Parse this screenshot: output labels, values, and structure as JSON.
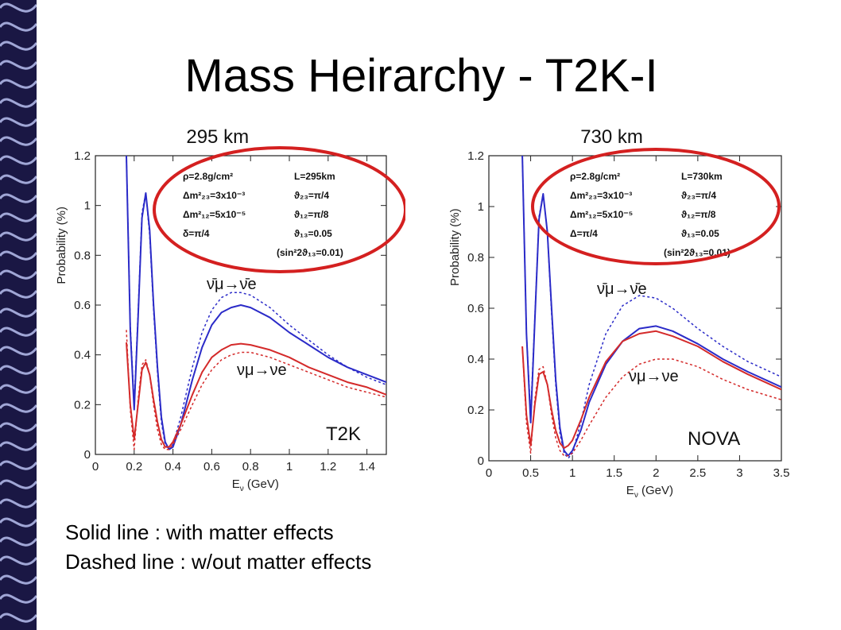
{
  "slide_title": "Mass Heirarchy - T2K-I",
  "legend_lines": [
    "Solid line : with matter effects",
    "Dashed line : w/out matter effects"
  ],
  "colors": {
    "nu_bar": "#2b2bc8",
    "nu": "#d42a2a",
    "ellipse": "#d42020",
    "deco_dark": "#1a1744",
    "deco_light": "#b8c0f0"
  },
  "chart_data": [
    {
      "type": "line",
      "title": "295 km",
      "xlabel": "E",
      "xlabel_sub": "ν",
      "xlabel_unit": "(GeV)",
      "ylabel": "Probability (%)",
      "xlim": [
        0,
        1.5
      ],
      "ylim": [
        0,
        1.2
      ],
      "xticks": [
        0,
        0.2,
        0.4,
        0.6,
        0.8,
        1,
        1.2,
        1.4
      ],
      "xtick_labels": [
        "0",
        "0.2",
        "0.4",
        "0.6",
        "0.8",
        "1",
        "1.2",
        "1.4"
      ],
      "yticks": [
        0,
        0.2,
        0.4,
        0.6,
        0.8,
        1,
        1.2
      ],
      "ytick_labels": [
        "0",
        "0.2",
        "0.4",
        "0.6",
        "0.8",
        "1",
        "1.2"
      ],
      "params": [
        [
          "ρ=2.8g/cm²",
          "L=295km"
        ],
        [
          "Δm²₂₃=3x10⁻³",
          "ϑ₂₃=π/4"
        ],
        [
          "Δm²₁₂=5x10⁻⁵",
          "ϑ₁₂=π/8"
        ],
        [
          "δ=π/4",
          "ϑ₁₃=0.05"
        ],
        [
          "",
          "(sin²2ϑ₁₃=0.01)"
        ]
      ],
      "label_top": "ν̄μ→ν̄e",
      "label_bottom": "νμ→νe",
      "experiment_label": "T2K",
      "series": [
        {
          "style": "solid",
          "color_key": "nu_bar",
          "x": [
            0.16,
            0.18,
            0.2,
            0.22,
            0.24,
            0.26,
            0.28,
            0.3,
            0.32,
            0.34,
            0.36,
            0.38,
            0.4,
            0.44,
            0.5,
            0.55,
            0.6,
            0.65,
            0.7,
            0.75,
            0.8,
            0.9,
            1.0,
            1.1,
            1.2,
            1.3,
            1.4,
            1.5
          ],
          "y": [
            1.2,
            0.5,
            0.18,
            0.55,
            0.95,
            1.05,
            0.9,
            0.6,
            0.35,
            0.15,
            0.05,
            0.02,
            0.03,
            0.12,
            0.3,
            0.43,
            0.52,
            0.57,
            0.59,
            0.6,
            0.59,
            0.55,
            0.49,
            0.44,
            0.39,
            0.35,
            0.32,
            0.29
          ]
        },
        {
          "style": "dashed",
          "color_key": "nu_bar",
          "x": [
            0.16,
            0.18,
            0.2,
            0.22,
            0.24,
            0.26,
            0.28,
            0.3,
            0.32,
            0.34,
            0.36,
            0.38,
            0.4,
            0.44,
            0.5,
            0.55,
            0.6,
            0.65,
            0.7,
            0.75,
            0.8,
            0.9,
            1.0,
            1.1,
            1.2,
            1.3,
            1.4,
            1.5
          ],
          "y": [
            1.2,
            0.52,
            0.2,
            0.57,
            0.97,
            1.05,
            0.88,
            0.58,
            0.33,
            0.13,
            0.04,
            0.02,
            0.04,
            0.15,
            0.35,
            0.49,
            0.58,
            0.63,
            0.65,
            0.65,
            0.64,
            0.59,
            0.52,
            0.46,
            0.4,
            0.35,
            0.31,
            0.28
          ]
        },
        {
          "style": "solid",
          "color_key": "nu",
          "x": [
            0.16,
            0.18,
            0.2,
            0.22,
            0.24,
            0.26,
            0.28,
            0.3,
            0.32,
            0.34,
            0.36,
            0.38,
            0.4,
            0.44,
            0.5,
            0.55,
            0.6,
            0.65,
            0.7,
            0.75,
            0.8,
            0.9,
            1.0,
            1.1,
            1.2,
            1.3,
            1.4,
            1.5
          ],
          "y": [
            0.45,
            0.2,
            0.06,
            0.2,
            0.34,
            0.37,
            0.32,
            0.22,
            0.13,
            0.06,
            0.03,
            0.03,
            0.05,
            0.12,
            0.24,
            0.33,
            0.39,
            0.42,
            0.44,
            0.445,
            0.44,
            0.42,
            0.39,
            0.35,
            0.32,
            0.29,
            0.27,
            0.24
          ]
        },
        {
          "style": "dashed",
          "color_key": "nu",
          "x": [
            0.16,
            0.18,
            0.2,
            0.22,
            0.24,
            0.26,
            0.28,
            0.3,
            0.32,
            0.34,
            0.36,
            0.38,
            0.4,
            0.44,
            0.5,
            0.55,
            0.6,
            0.65,
            0.7,
            0.75,
            0.8,
            0.9,
            1.0,
            1.1,
            1.2,
            1.3,
            1.4,
            1.5
          ],
          "y": [
            0.5,
            0.18,
            0.02,
            0.22,
            0.36,
            0.38,
            0.32,
            0.2,
            0.1,
            0.04,
            0.02,
            0.02,
            0.04,
            0.1,
            0.2,
            0.28,
            0.34,
            0.38,
            0.4,
            0.41,
            0.41,
            0.39,
            0.36,
            0.33,
            0.3,
            0.27,
            0.25,
            0.23
          ]
        }
      ]
    },
    {
      "type": "line",
      "title": "730 km",
      "xlabel": "E",
      "xlabel_sub": "ν",
      "xlabel_unit": "(GeV)",
      "ylabel": "Probability (%)",
      "xlim": [
        0,
        3.5
      ],
      "ylim": [
        0,
        1.2
      ],
      "xticks": [
        0,
        0.5,
        1,
        1.5,
        2,
        2.5,
        3,
        3.5
      ],
      "xtick_labels": [
        "0",
        "0.5",
        "1",
        "1.5",
        "2",
        "2.5",
        "3",
        "3.5"
      ],
      "yticks": [
        0,
        0.2,
        0.4,
        0.6,
        0.8,
        1,
        1.2
      ],
      "ytick_labels": [
        "0",
        "0.2",
        "0.4",
        "0.6",
        "0.8",
        "1",
        "1.2"
      ],
      "params": [
        [
          "ρ=2.8g/cm²",
          "L=730km"
        ],
        [
          "Δm²₂₃=3x10⁻³",
          "ϑ₂₃=π/4"
        ],
        [
          "Δm²₁₂=5x10⁻⁵",
          "ϑ₁₂=π/8"
        ],
        [
          "Δ=π/4",
          "ϑ₁₃=0.05"
        ],
        [
          "",
          "(sin²2ϑ₁₃=0.01)"
        ]
      ],
      "label_top": "ν̄μ→ν̄e",
      "label_bottom": "νμ→νe",
      "experiment_label": "NOVA",
      "series": [
        {
          "style": "solid",
          "color_key": "nu_bar",
          "x": [
            0.4,
            0.45,
            0.5,
            0.55,
            0.6,
            0.65,
            0.7,
            0.75,
            0.8,
            0.85,
            0.9,
            0.95,
            1.0,
            1.1,
            1.2,
            1.4,
            1.6,
            1.8,
            2.0,
            2.2,
            2.5,
            2.8,
            3.1,
            3.5
          ],
          "y": [
            1.2,
            0.5,
            0.15,
            0.55,
            0.95,
            1.05,
            0.9,
            0.6,
            0.32,
            0.13,
            0.04,
            0.02,
            0.04,
            0.12,
            0.23,
            0.38,
            0.47,
            0.52,
            0.53,
            0.51,
            0.46,
            0.4,
            0.35,
            0.29
          ]
        },
        {
          "style": "dashed",
          "color_key": "nu_bar",
          "x": [
            0.4,
            0.45,
            0.5,
            0.55,
            0.6,
            0.65,
            0.7,
            0.75,
            0.8,
            0.85,
            0.9,
            0.95,
            1.0,
            1.1,
            1.2,
            1.4,
            1.6,
            1.8,
            2.0,
            2.2,
            2.5,
            2.8,
            3.1,
            3.5
          ],
          "y": [
            1.2,
            0.5,
            0.18,
            0.56,
            0.96,
            1.05,
            0.9,
            0.58,
            0.3,
            0.11,
            0.03,
            0.01,
            0.03,
            0.15,
            0.3,
            0.5,
            0.61,
            0.65,
            0.64,
            0.6,
            0.52,
            0.45,
            0.39,
            0.33
          ]
        },
        {
          "style": "solid",
          "color_key": "nu",
          "x": [
            0.4,
            0.45,
            0.5,
            0.55,
            0.6,
            0.65,
            0.7,
            0.75,
            0.8,
            0.85,
            0.9,
            0.95,
            1.0,
            1.1,
            1.2,
            1.4,
            1.6,
            1.8,
            2.0,
            2.2,
            2.5,
            2.8,
            3.1,
            3.5
          ],
          "y": [
            0.45,
            0.18,
            0.06,
            0.22,
            0.34,
            0.35,
            0.3,
            0.2,
            0.12,
            0.07,
            0.05,
            0.06,
            0.08,
            0.16,
            0.25,
            0.39,
            0.47,
            0.5,
            0.51,
            0.49,
            0.45,
            0.39,
            0.34,
            0.28
          ]
        },
        {
          "style": "dashed",
          "color_key": "nu",
          "x": [
            0.4,
            0.45,
            0.5,
            0.55,
            0.6,
            0.65,
            0.7,
            0.75,
            0.8,
            0.85,
            0.9,
            0.95,
            1.0,
            1.1,
            1.2,
            1.4,
            1.6,
            1.8,
            2.0,
            2.2,
            2.5,
            2.8,
            3.1,
            3.5
          ],
          "y": [
            0.45,
            0.15,
            0.03,
            0.24,
            0.36,
            0.37,
            0.3,
            0.18,
            0.09,
            0.04,
            0.02,
            0.02,
            0.03,
            0.08,
            0.14,
            0.25,
            0.33,
            0.38,
            0.4,
            0.4,
            0.37,
            0.32,
            0.28,
            0.24
          ]
        }
      ]
    }
  ]
}
